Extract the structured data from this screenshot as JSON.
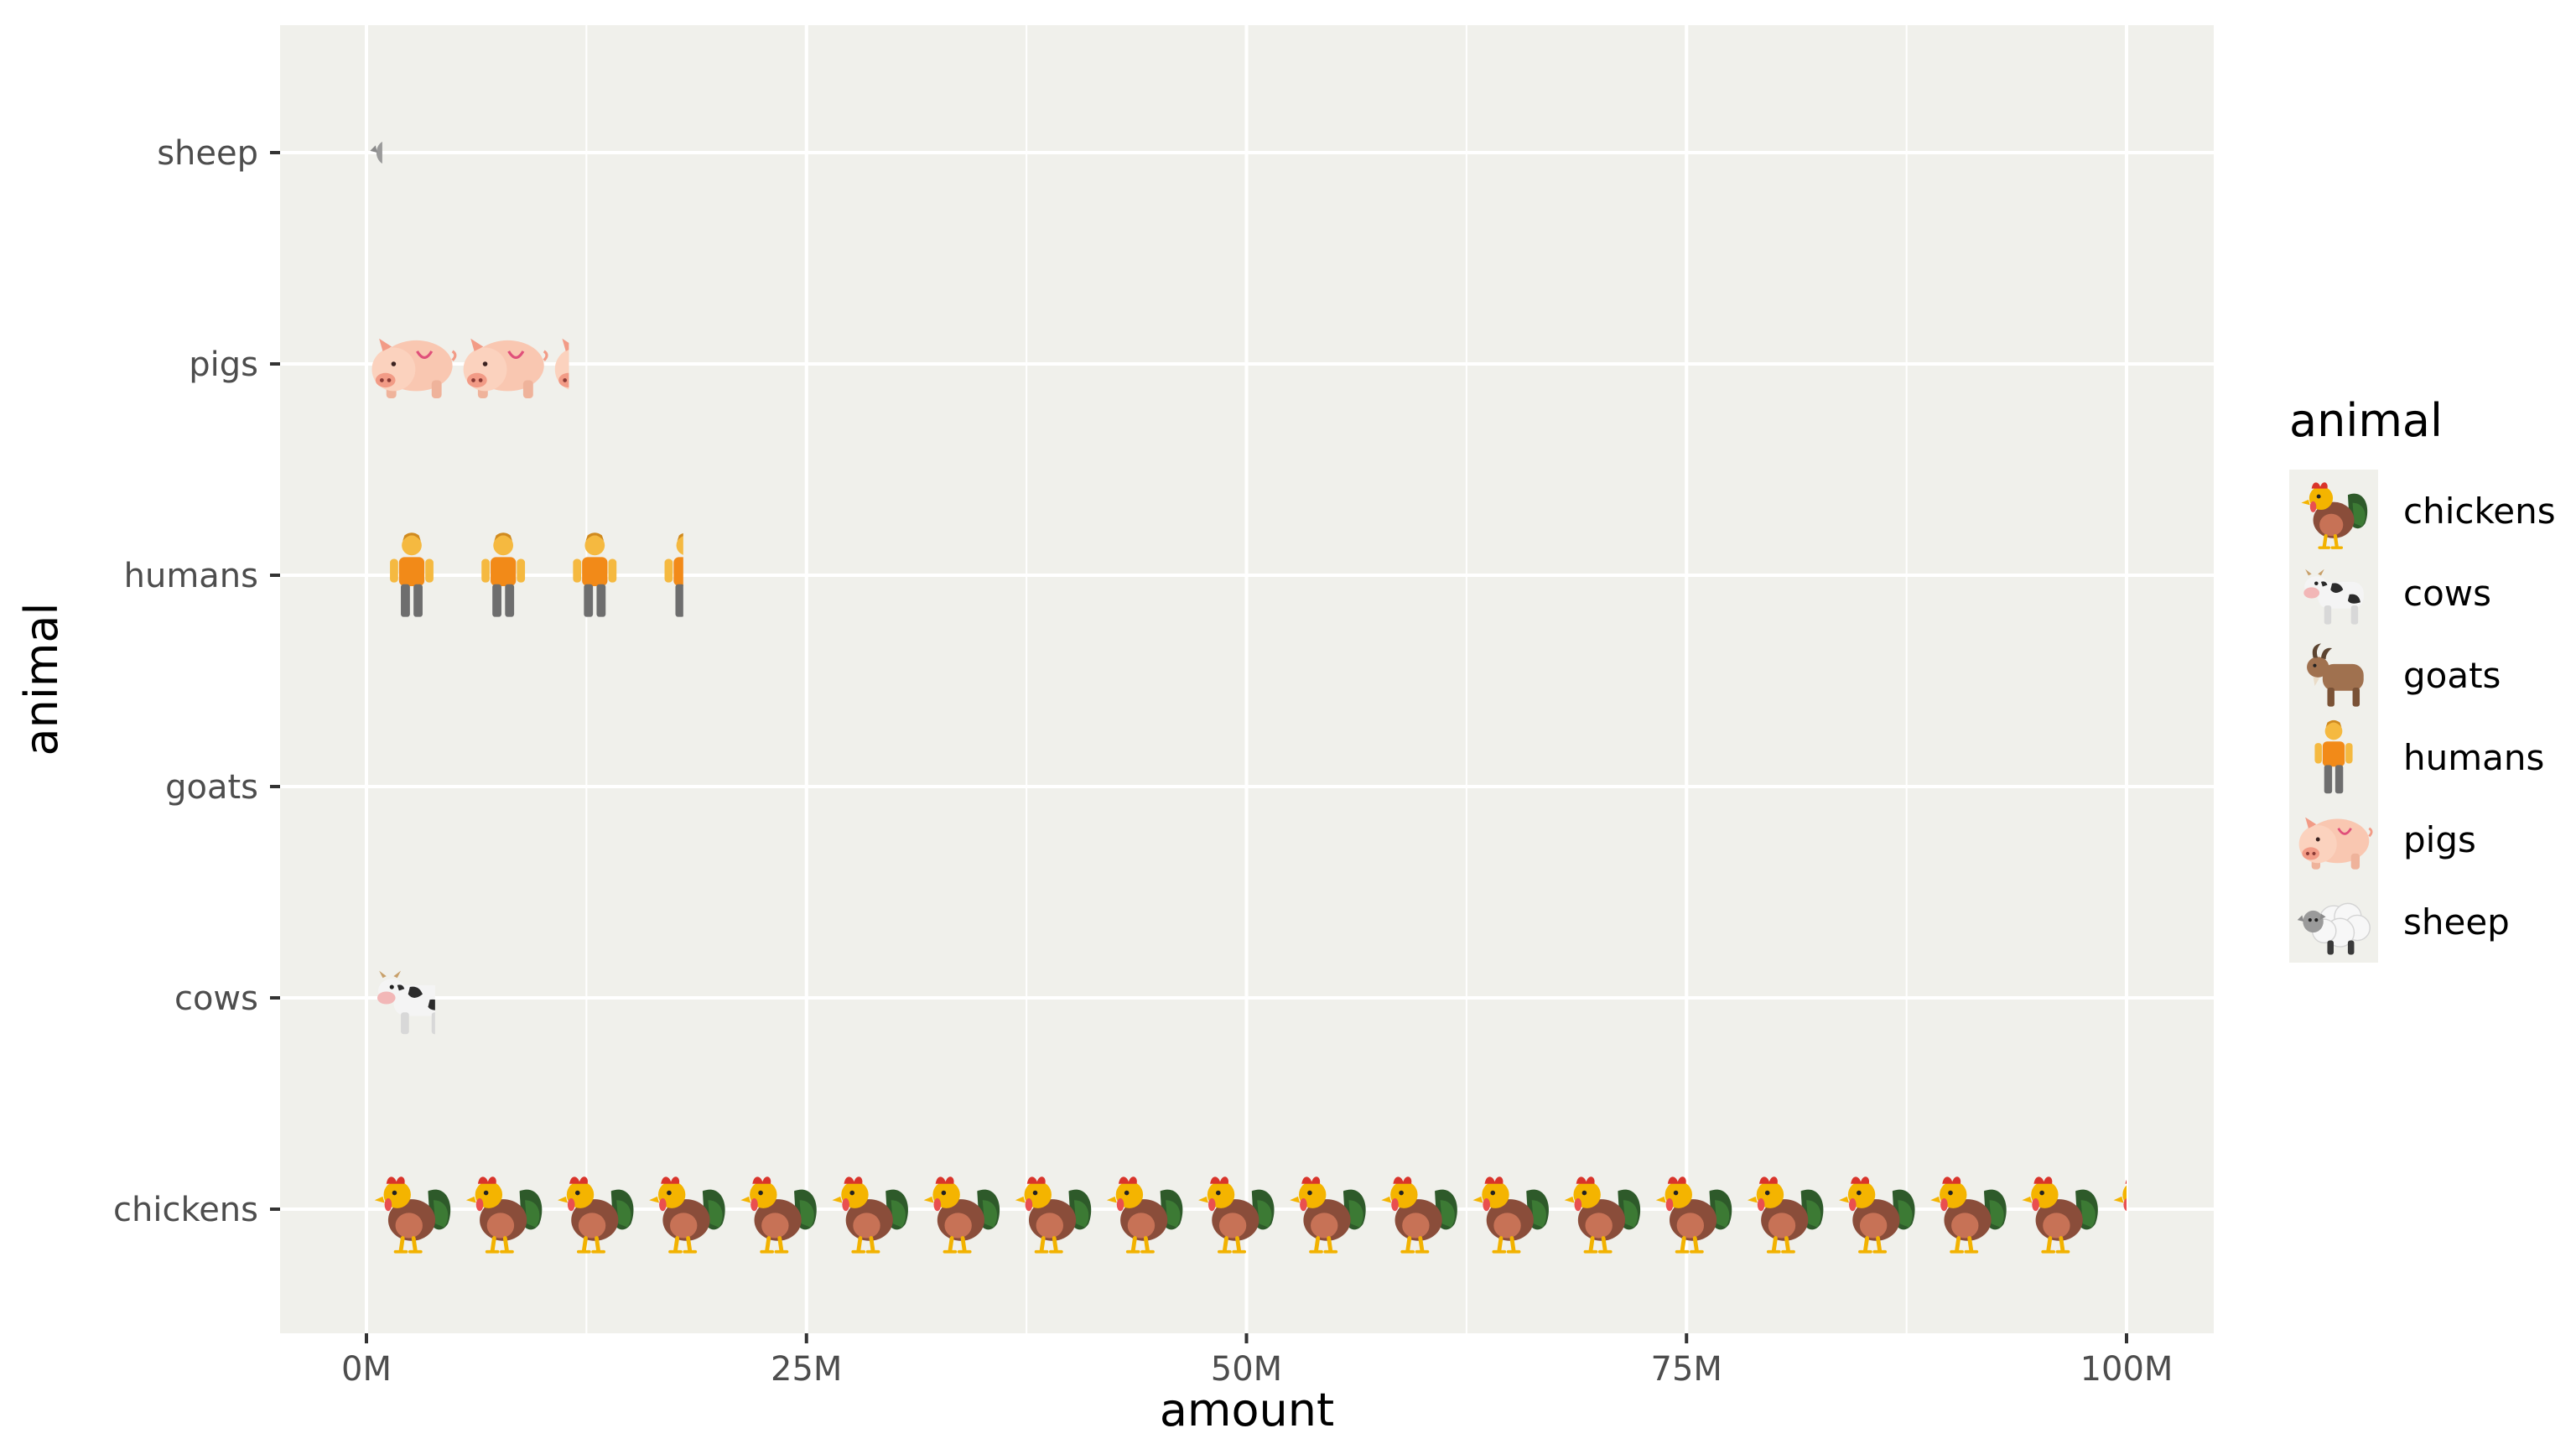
{
  "chart_data": {
    "type": "bar",
    "style": "pictogram",
    "xlabel": "amount",
    "ylabel": "animal",
    "xlim": [
      0,
      100000000
    ],
    "x_ticks": [
      0,
      25000000,
      50000000,
      75000000,
      100000000
    ],
    "x_tick_labels": [
      "0M",
      "25M",
      "50M",
      "75M",
      "100M"
    ],
    "categories": [
      "chickens",
      "cows",
      "goats",
      "humans",
      "pigs",
      "sheep"
    ],
    "values": [
      100000000,
      3900000,
      0,
      18000000,
      11500000,
      900000
    ],
    "icon_unit": 5200000,
    "grid": true,
    "panel_background": "#f0f0eb",
    "legend": {
      "title": "animal",
      "position": "right",
      "entries": [
        {
          "label": "chickens",
          "icon": "rooster-icon"
        },
        {
          "label": "cows",
          "icon": "cow-icon"
        },
        {
          "label": "goats",
          "icon": "goat-icon"
        },
        {
          "label": "humans",
          "icon": "person-icon"
        },
        {
          "label": "pigs",
          "icon": "pig-icon"
        },
        {
          "label": "sheep",
          "icon": "sheep-icon"
        }
      ]
    }
  }
}
